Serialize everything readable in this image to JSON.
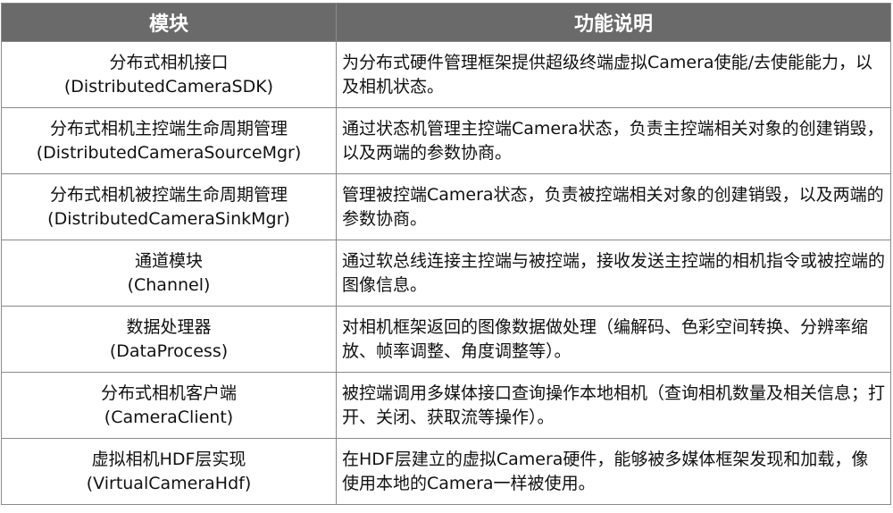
{
  "header": {
    "module": "模块",
    "function": "功能说明"
  },
  "rows": [
    {
      "name": "分布式相机接口",
      "code": "(DistributedCameraSDK)",
      "desc": "为分布式硬件管理框架提供超级终端虚拟Camera使能/去使能能力，以及相机状态。"
    },
    {
      "name": "分布式相机主控端生命周期管理",
      "code": "(DistributedCameraSourceMgr)",
      "desc": "通过状态机管理主控端Camera状态，负责主控端相关对象的创建销毁，以及两端的参数协商。"
    },
    {
      "name": "分布式相机被控端生命周期管理",
      "code": "(DistributedCameraSinkMgr)",
      "desc": "管理被控端Camera状态，负责被控端相关对象的创建销毁，以及两端的参数协商。"
    },
    {
      "name": "通道模块",
      "code": "(Channel)",
      "desc": "通过软总线连接主控端与被控端，接收发送主控端的相机指令或被控端的图像信息。"
    },
    {
      "name": "数据处理器",
      "code": "(DataProcess)",
      "desc": "对相机框架返回的图像数据做处理（编解码、色彩空间转换、分辨率缩放、帧率调整、角度调整等）。"
    },
    {
      "name": "分布式相机客户端",
      "code": "(CameraClient)",
      "desc": "被控端调用多媒体接口查询操作本地相机（查询相机数量及相关信息；打开、关闭、获取流等操作）。"
    },
    {
      "name": "虚拟相机HDF层实现",
      "code": "(VirtualCameraHdf)",
      "desc": "在HDF层建立的虚拟Camera硬件，能够被多媒体框架发现和加载，像使用本地的Camera一样被使用。"
    }
  ]
}
